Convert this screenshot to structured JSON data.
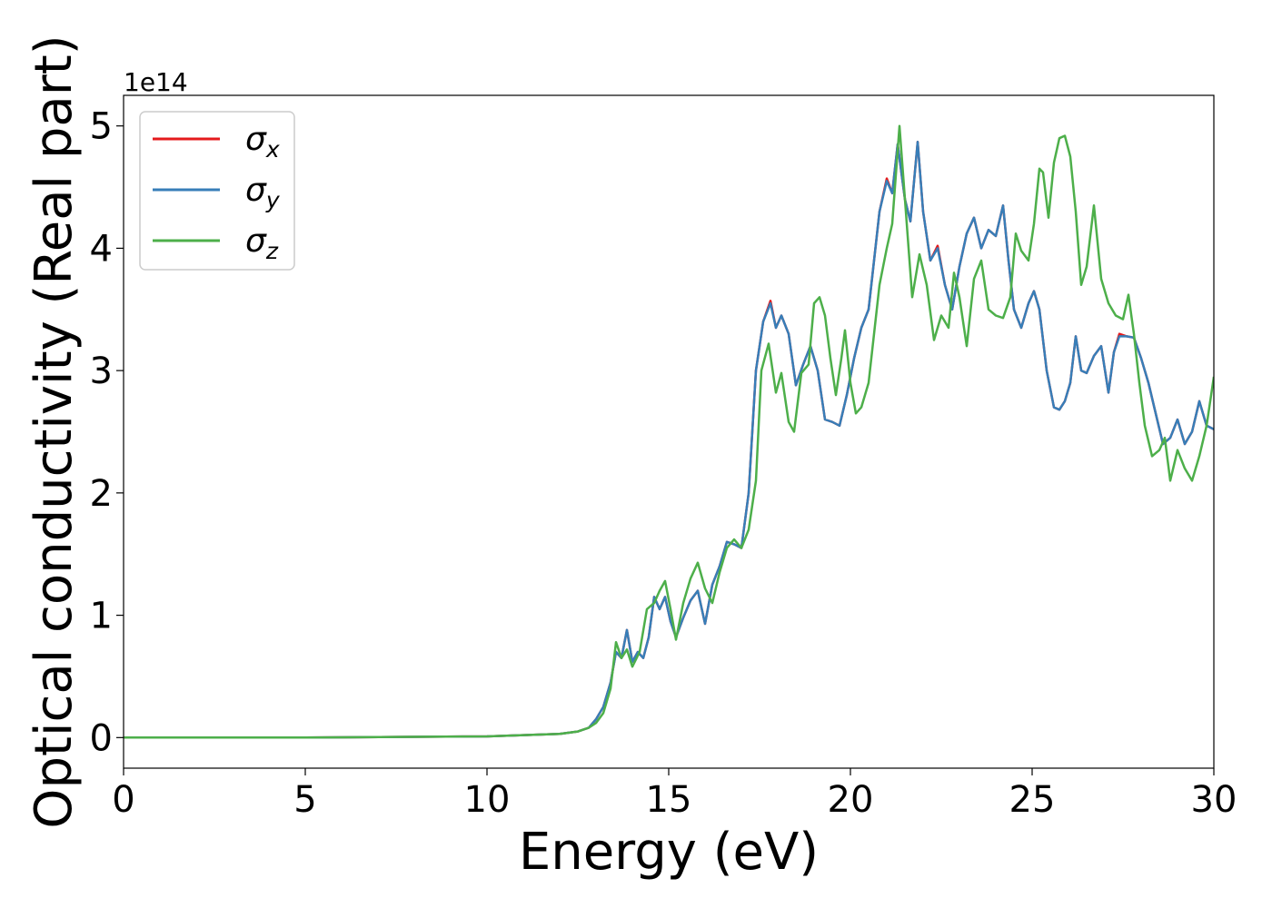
{
  "chart_data": {
    "type": "line",
    "xlabel": "Energy (eV)",
    "ylabel": "Optical conductivity (Real part)",
    "y_offset_text": "1e14",
    "y_multiplier": 100000000000000.0,
    "xlim": [
      0,
      30
    ],
    "ylim": [
      -0.25,
      5.25
    ],
    "xticks": [
      0,
      5,
      10,
      15,
      20,
      25,
      30
    ],
    "yticks": [
      0,
      1,
      2,
      3,
      4,
      5
    ],
    "grid": false,
    "legend_position": "top-left",
    "series": [
      {
        "name": "σx",
        "symbol": "σ",
        "subscript": "x",
        "color": "#e41a1c",
        "x": [
          0,
          5,
          10,
          11,
          12,
          12.5,
          12.8,
          13.0,
          13.2,
          13.4,
          13.55,
          13.7,
          13.85,
          14.0,
          14.15,
          14.3,
          14.45,
          14.6,
          14.75,
          14.9,
          15.05,
          15.2,
          15.4,
          15.6,
          15.8,
          16.0,
          16.2,
          16.4,
          16.6,
          16.8,
          17.0,
          17.2,
          17.4,
          17.6,
          17.8,
          17.95,
          18.1,
          18.3,
          18.5,
          18.7,
          18.9,
          19.1,
          19.3,
          19.5,
          19.7,
          19.9,
          20.1,
          20.3,
          20.5,
          20.65,
          20.8,
          21.0,
          21.15,
          21.3,
          21.5,
          21.65,
          21.85,
          22.0,
          22.2,
          22.4,
          22.6,
          22.8,
          23.0,
          23.2,
          23.4,
          23.6,
          23.8,
          24.0,
          24.2,
          24.35,
          24.5,
          24.7,
          24.9,
          25.05,
          25.2,
          25.4,
          25.6,
          25.75,
          25.9,
          26.05,
          26.2,
          26.35,
          26.5,
          26.7,
          26.9,
          27.1,
          27.25,
          27.4,
          27.6,
          27.8,
          28.0,
          28.2,
          28.4,
          28.6,
          28.8,
          29.0,
          29.2,
          29.4,
          29.6,
          29.8,
          30.0
        ],
        "y": [
          0,
          0,
          0.01,
          0.02,
          0.03,
          0.05,
          0.08,
          0.15,
          0.25,
          0.45,
          0.7,
          0.65,
          0.88,
          0.62,
          0.7,
          0.65,
          0.82,
          1.15,
          1.05,
          1.15,
          0.95,
          0.82,
          0.98,
          1.12,
          1.2,
          0.93,
          1.25,
          1.4,
          1.6,
          1.58,
          1.55,
          2.0,
          3.0,
          3.4,
          3.57,
          3.35,
          3.45,
          3.3,
          2.88,
          3.05,
          3.2,
          3.0,
          2.6,
          2.58,
          2.55,
          2.8,
          3.1,
          3.35,
          3.5,
          3.9,
          4.3,
          4.57,
          4.45,
          4.85,
          4.4,
          4.22,
          4.87,
          4.3,
          3.9,
          4.02,
          3.7,
          3.5,
          3.85,
          4.12,
          4.25,
          4.0,
          4.15,
          4.1,
          4.35,
          3.9,
          3.5,
          3.35,
          3.55,
          3.65,
          3.5,
          3.0,
          2.7,
          2.68,
          2.75,
          2.9,
          3.28,
          3.0,
          2.98,
          3.12,
          3.2,
          2.82,
          3.15,
          3.3,
          3.28,
          3.27,
          3.1,
          2.9,
          2.65,
          2.4,
          2.45,
          2.6,
          2.4,
          2.5,
          2.75,
          2.55,
          2.52
        ]
      },
      {
        "name": "σy",
        "symbol": "σ",
        "subscript": "y",
        "color": "#377eb8",
        "x": [
          0,
          5,
          10,
          11,
          12,
          12.5,
          12.8,
          13.0,
          13.2,
          13.4,
          13.55,
          13.7,
          13.85,
          14.0,
          14.15,
          14.3,
          14.45,
          14.6,
          14.75,
          14.9,
          15.05,
          15.2,
          15.4,
          15.6,
          15.8,
          16.0,
          16.2,
          16.4,
          16.6,
          16.8,
          17.0,
          17.2,
          17.4,
          17.6,
          17.8,
          17.95,
          18.1,
          18.3,
          18.5,
          18.7,
          18.9,
          19.1,
          19.3,
          19.5,
          19.7,
          19.9,
          20.1,
          20.3,
          20.5,
          20.65,
          20.8,
          21.0,
          21.15,
          21.3,
          21.5,
          21.65,
          21.85,
          22.0,
          22.2,
          22.4,
          22.6,
          22.8,
          23.0,
          23.2,
          23.4,
          23.6,
          23.8,
          24.0,
          24.2,
          24.35,
          24.5,
          24.7,
          24.9,
          25.05,
          25.2,
          25.4,
          25.6,
          25.75,
          25.9,
          26.05,
          26.2,
          26.35,
          26.5,
          26.7,
          26.9,
          27.1,
          27.25,
          27.4,
          27.6,
          27.8,
          28.0,
          28.2,
          28.4,
          28.6,
          28.8,
          29.0,
          29.2,
          29.4,
          29.6,
          29.8,
          30.0
        ],
        "y": [
          0,
          0,
          0.01,
          0.02,
          0.03,
          0.05,
          0.08,
          0.15,
          0.25,
          0.45,
          0.7,
          0.65,
          0.88,
          0.62,
          0.7,
          0.65,
          0.82,
          1.15,
          1.05,
          1.15,
          0.95,
          0.82,
          0.98,
          1.12,
          1.2,
          0.93,
          1.25,
          1.4,
          1.6,
          1.58,
          1.55,
          2.0,
          3.0,
          3.4,
          3.55,
          3.35,
          3.45,
          3.3,
          2.88,
          3.05,
          3.2,
          3.0,
          2.6,
          2.58,
          2.55,
          2.8,
          3.1,
          3.35,
          3.5,
          3.9,
          4.3,
          4.55,
          4.45,
          4.85,
          4.4,
          4.22,
          4.87,
          4.3,
          3.9,
          4.0,
          3.7,
          3.5,
          3.85,
          4.12,
          4.25,
          4.0,
          4.15,
          4.1,
          4.35,
          3.9,
          3.5,
          3.35,
          3.55,
          3.65,
          3.5,
          3.0,
          2.7,
          2.68,
          2.75,
          2.9,
          3.28,
          3.0,
          2.98,
          3.12,
          3.2,
          2.82,
          3.15,
          3.28,
          3.28,
          3.27,
          3.1,
          2.9,
          2.65,
          2.4,
          2.45,
          2.6,
          2.4,
          2.5,
          2.75,
          2.55,
          2.52
        ]
      },
      {
        "name": "σz",
        "symbol": "σ",
        "subscript": "z",
        "color": "#4daf4a",
        "x": [
          0,
          5,
          10,
          11,
          12,
          12.5,
          12.8,
          13.0,
          13.2,
          13.4,
          13.55,
          13.7,
          13.85,
          14.0,
          14.2,
          14.4,
          14.6,
          14.75,
          14.9,
          15.05,
          15.2,
          15.4,
          15.6,
          15.8,
          16.0,
          16.2,
          16.4,
          16.6,
          16.8,
          17.0,
          17.2,
          17.4,
          17.55,
          17.75,
          17.95,
          18.1,
          18.3,
          18.45,
          18.65,
          18.85,
          19.0,
          19.15,
          19.3,
          19.45,
          19.6,
          19.75,
          19.85,
          20.0,
          20.15,
          20.3,
          20.5,
          20.65,
          20.8,
          21.0,
          21.15,
          21.35,
          21.5,
          21.7,
          21.9,
          22.1,
          22.3,
          22.5,
          22.7,
          22.85,
          23.0,
          23.2,
          23.4,
          23.6,
          23.8,
          24.0,
          24.2,
          24.4,
          24.55,
          24.7,
          24.9,
          25.05,
          25.2,
          25.3,
          25.45,
          25.6,
          25.75,
          25.9,
          26.05,
          26.2,
          26.35,
          26.5,
          26.7,
          26.9,
          27.1,
          27.3,
          27.5,
          27.65,
          27.8,
          27.95,
          28.1,
          28.3,
          28.5,
          28.65,
          28.8,
          29.0,
          29.2,
          29.4,
          29.6,
          29.8,
          30.0
        ],
        "y": [
          0,
          0,
          0.01,
          0.02,
          0.03,
          0.05,
          0.08,
          0.12,
          0.2,
          0.4,
          0.78,
          0.65,
          0.72,
          0.58,
          0.7,
          1.05,
          1.1,
          1.2,
          1.28,
          1.05,
          0.8,
          1.1,
          1.3,
          1.43,
          1.22,
          1.1,
          1.35,
          1.55,
          1.62,
          1.55,
          1.7,
          2.1,
          3.0,
          3.22,
          2.82,
          2.98,
          2.58,
          2.5,
          2.98,
          3.05,
          3.55,
          3.6,
          3.45,
          3.1,
          2.8,
          3.1,
          3.33,
          2.9,
          2.65,
          2.7,
          2.9,
          3.3,
          3.7,
          4.0,
          4.2,
          5.0,
          4.4,
          3.6,
          3.95,
          3.7,
          3.25,
          3.45,
          3.35,
          3.8,
          3.6,
          3.2,
          3.75,
          3.9,
          3.5,
          3.45,
          3.43,
          3.6,
          4.12,
          3.98,
          3.9,
          4.2,
          4.65,
          4.62,
          4.25,
          4.7,
          4.9,
          4.92,
          4.75,
          4.3,
          3.7,
          3.85,
          4.35,
          3.75,
          3.55,
          3.45,
          3.42,
          3.62,
          3.3,
          2.9,
          2.55,
          2.3,
          2.35,
          2.45,
          2.1,
          2.35,
          2.2,
          2.1,
          2.3,
          2.55,
          2.95
        ]
      }
    ]
  }
}
